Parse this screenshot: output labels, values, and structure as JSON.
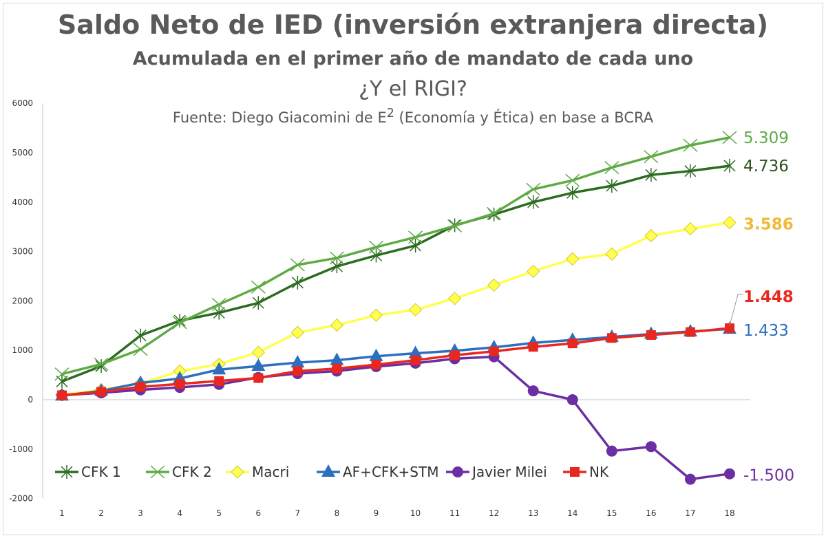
{
  "chart_data": {
    "type": "line",
    "title": "Saldo Neto de IED (inversión extranjera directa)",
    "subtitle": "Acumulada en el primer año de mandato de cada uno",
    "subtitle2": "¿Y el RIGI?",
    "source_prefix": "Fuente: Diego Giacomini de E",
    "source_sup": "2",
    "source_suffix": " (Economía y Ética) en base a BCRA",
    "xlabel": "",
    "ylabel": "",
    "x": [
      1,
      2,
      3,
      4,
      5,
      6,
      7,
      8,
      9,
      10,
      11,
      12,
      13,
      14,
      15,
      16,
      17,
      18
    ],
    "ylim": [
      -2000,
      6000
    ],
    "yticks": [
      -2000,
      -1000,
      0,
      1000,
      2000,
      3000,
      4000,
      5000,
      6000
    ],
    "legend_placement": "bottom-left inside",
    "series": [
      {
        "name": "CFK 1",
        "color": "#2e6b22",
        "marker": "star",
        "end_label": "4.736",
        "label_color": "#2f4f1f",
        "values": [
          370,
          680,
          1300,
          1600,
          1760,
          1960,
          2370,
          2700,
          2920,
          3120,
          3530,
          3750,
          4000,
          4190,
          4330,
          4550,
          4630,
          4736
        ]
      },
      {
        "name": "CFK 2",
        "color": "#5faa45",
        "marker": "x",
        "end_label": "5.309",
        "label_color": "#5aaa48",
        "values": [
          520,
          720,
          1020,
          1560,
          1930,
          2280,
          2730,
          2870,
          3090,
          3290,
          3520,
          3770,
          4260,
          4440,
          4700,
          4920,
          5150,
          5309
        ]
      },
      {
        "name": "Macri",
        "color": "#ffff4d",
        "marker": "diamond",
        "end_label": "3.586",
        "label_color": "#f0b93a",
        "values": [
          100,
          200,
          330,
          580,
          720,
          960,
          1360,
          1510,
          1710,
          1820,
          2050,
          2320,
          2600,
          2850,
          2950,
          3320,
          3460,
          3586
        ]
      },
      {
        "name": "AF+CFK+STM",
        "color": "#2c6fbf",
        "marker": "triangle",
        "end_label": "1.433",
        "label_color": "#2c6fbf",
        "values": [
          80,
          180,
          340,
          430,
          610,
          680,
          750,
          800,
          880,
          940,
          990,
          1060,
          1150,
          1210,
          1270,
          1330,
          1380,
          1433
        ]
      },
      {
        "name": "Javier Milei",
        "color": "#6b2fa3",
        "marker": "circle",
        "end_label": "-1.500",
        "label_color": "#7030a0",
        "values": [
          90,
          140,
          200,
          250,
          310,
          450,
          530,
          580,
          670,
          740,
          830,
          870,
          180,
          0,
          -1040,
          -950,
          -1610,
          -1500
        ]
      },
      {
        "name": "NK",
        "color": "#e8281e",
        "marker": "square",
        "end_label": "1.448",
        "label_color": "#e8281e",
        "values": [
          90,
          160,
          260,
          320,
          380,
          440,
          580,
          630,
          710,
          800,
          900,
          980,
          1070,
          1140,
          1250,
          1310,
          1370,
          1448
        ]
      }
    ]
  }
}
